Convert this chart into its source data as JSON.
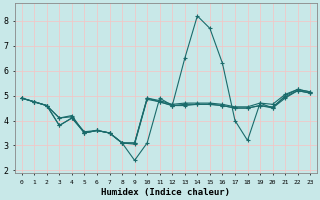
{
  "xlabel": "Humidex (Indice chaleur)",
  "bg_color": "#c8e8e8",
  "line_color": "#1a6b6b",
  "grid_color": "#f0c8c8",
  "xlim": [
    -0.5,
    23.5
  ],
  "ylim": [
    1.9,
    8.7
  ],
  "yticks": [
    2,
    3,
    4,
    5,
    6,
    7,
    8
  ],
  "xticks": [
    0,
    1,
    2,
    3,
    4,
    5,
    6,
    7,
    8,
    9,
    10,
    11,
    12,
    13,
    14,
    15,
    16,
    17,
    18,
    19,
    20,
    21,
    22,
    23
  ],
  "series": [
    {
      "x": [
        0,
        1,
        2,
        3,
        4,
        5,
        6,
        7,
        8,
        9,
        10,
        11,
        12,
        13,
        14,
        15,
        16,
        17,
        18,
        19,
        20,
        21,
        22,
        23
      ],
      "y": [
        4.9,
        4.75,
        4.6,
        4.1,
        4.2,
        3.5,
        3.6,
        3.5,
        3.1,
        2.4,
        3.1,
        4.9,
        4.6,
        6.5,
        8.2,
        7.7,
        6.3,
        4.0,
        3.2,
        4.7,
        4.5,
        5.0,
        5.25,
        5.15
      ]
    },
    {
      "x": [
        0,
        1,
        2,
        3,
        4,
        5,
        6,
        7,
        8,
        9,
        10,
        11,
        12,
        13,
        14,
        15,
        16,
        17,
        18,
        19,
        20,
        21,
        22,
        23
      ],
      "y": [
        4.9,
        4.75,
        4.6,
        4.1,
        4.15,
        3.5,
        3.6,
        3.5,
        3.1,
        3.1,
        4.9,
        4.8,
        4.65,
        4.7,
        4.7,
        4.7,
        4.65,
        4.55,
        4.55,
        4.7,
        4.65,
        5.05,
        5.25,
        5.15
      ]
    },
    {
      "x": [
        0,
        1,
        2,
        3,
        4,
        5,
        6,
        7,
        8,
        9,
        10,
        11,
        12,
        13,
        14,
        15,
        16,
        17,
        18,
        19,
        20,
        21,
        22,
        23
      ],
      "y": [
        4.9,
        4.75,
        4.6,
        3.8,
        4.1,
        3.5,
        3.6,
        3.5,
        3.1,
        3.1,
        4.9,
        4.75,
        4.6,
        4.65,
        4.65,
        4.65,
        4.6,
        4.5,
        4.5,
        4.6,
        4.55,
        4.95,
        5.2,
        5.1
      ]
    },
    {
      "x": [
        0,
        1,
        2,
        3,
        4,
        5,
        6,
        7,
        8,
        9,
        10,
        11,
        12,
        13,
        14,
        15,
        16,
        17,
        18,
        19,
        20,
        21,
        22,
        23
      ],
      "y": [
        4.9,
        4.75,
        4.6,
        3.8,
        4.1,
        3.55,
        3.6,
        3.5,
        3.1,
        3.05,
        4.85,
        4.75,
        4.6,
        4.6,
        4.65,
        4.65,
        4.6,
        4.5,
        4.5,
        4.6,
        4.5,
        4.9,
        5.2,
        5.1
      ]
    }
  ]
}
